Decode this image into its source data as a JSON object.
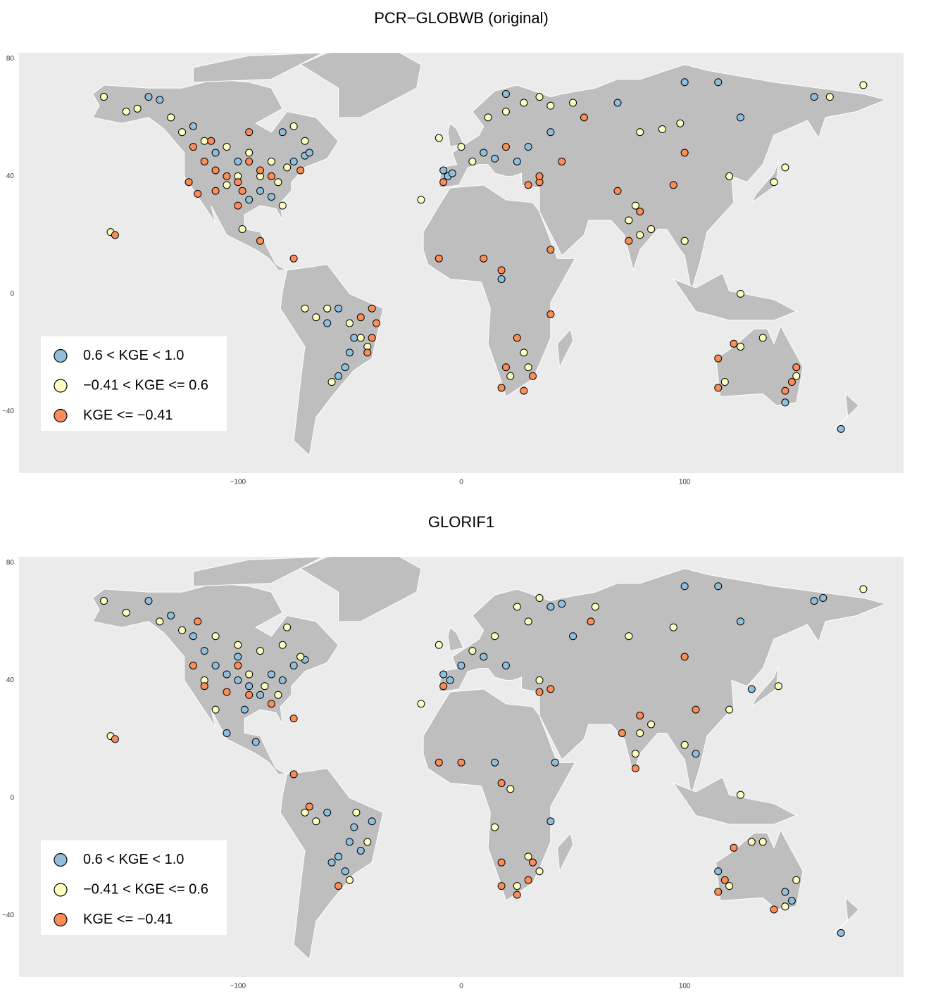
{
  "chart_data": [
    {
      "type": "scatter",
      "title": "PCR−GLOBWB (original)",
      "xlim": [
        -198,
        198
      ],
      "ylim": [
        -61,
        82
      ],
      "xticks": [
        {
          "value": -100,
          "label": "−100"
        },
        0,
        100
      ],
      "yticks": [
        {
          "value": -40,
          "label": "−40"
        },
        0,
        40,
        80
      ],
      "grid": false,
      "legend": "lower left",
      "series": [
        {
          "name": "0.6 < KGE < 1.0",
          "color": "#91bfdb",
          "x": [
            -140,
            -135,
            -120,
            -110,
            -100,
            -90,
            -85,
            -95,
            -75,
            -70,
            -80,
            -68,
            -8,
            -6,
            -4,
            10,
            15,
            25,
            30,
            20,
            40,
            70,
            100,
            115,
            125,
            158,
            -50,
            -52,
            -55,
            -48,
            -60,
            -55,
            170,
            18,
            145
          ],
          "values": [
            67,
            66,
            57,
            48,
            45,
            35,
            33,
            32,
            45,
            47,
            55,
            48,
            42,
            40,
            41,
            48,
            46,
            45,
            50,
            68,
            55,
            65,
            72,
            72,
            60,
            67,
            -20,
            -25,
            -28,
            -15,
            -10,
            -5,
            -46,
            5,
            -37
          ]
        },
        {
          "name": "−0.41 < KGE <= 0.6",
          "color": "#ffffbf",
          "x": [
            -160,
            -150,
            -145,
            -130,
            -125,
            -115,
            -105,
            -95,
            -85,
            -78,
            -70,
            -75,
            -100,
            -90,
            -105,
            -82,
            -80,
            -98,
            -157,
            -18,
            -10,
            0,
            5,
            12,
            20,
            28,
            35,
            40,
            50,
            80,
            90,
            98,
            120,
            140,
            145,
            80,
            75,
            85,
            78,
            100,
            125,
            165,
            180,
            -60,
            -65,
            -70,
            -45,
            -42,
            -50,
            -58,
            22,
            30,
            28,
            125,
            135,
            150,
            118
          ],
          "values": [
            67,
            62,
            63,
            60,
            55,
            52,
            50,
            48,
            45,
            43,
            52,
            57,
            40,
            40,
            37,
            38,
            30,
            22,
            21,
            32,
            53,
            50,
            45,
            60,
            62,
            65,
            67,
            64,
            65,
            55,
            56,
            58,
            40,
            38,
            43,
            20,
            25,
            22,
            30,
            18,
            0,
            67,
            71,
            -5,
            -8,
            -5,
            -15,
            -18,
            -10,
            -30,
            -28,
            -25,
            -20,
            -18,
            -15,
            -28,
            -30
          ]
        },
        {
          "name": "KGE <= −0.41",
          "color": "#fc8d59",
          "x": [
            -120,
            -115,
            -110,
            -105,
            -100,
            -98,
            -95,
            -90,
            -85,
            -110,
            -100,
            -122,
            -118,
            -112,
            -95,
            -72,
            -90,
            -155,
            -75,
            -40,
            -38,
            -40,
            -42,
            -45,
            -8,
            20,
            45,
            30,
            35,
            -10,
            10,
            18,
            40,
            40,
            20,
            18,
            28,
            25,
            32,
            35,
            55,
            70,
            80,
            75,
            100,
            95,
            115,
            115,
            122,
            148,
            150,
            145
          ],
          "values": [
            50,
            45,
            42,
            40,
            38,
            35,
            45,
            42,
            40,
            35,
            30,
            38,
            34,
            52,
            55,
            42,
            18,
            20,
            12,
            -5,
            -10,
            -15,
            -20,
            -8,
            38,
            50,
            45,
            37,
            38,
            12,
            12,
            8,
            15,
            -7,
            -25,
            -32,
            -33,
            -15,
            -28,
            40,
            60,
            35,
            28,
            18,
            48,
            37,
            -32,
            -22,
            -17,
            -30,
            -25,
            -33
          ]
        }
      ]
    },
    {
      "type": "scatter",
      "title": "GLORIF1",
      "xlim": [
        -198,
        198
      ],
      "ylim": [
        -61,
        82
      ],
      "xticks": [
        {
          "value": -100,
          "label": "−100"
        },
        0,
        100
      ],
      "yticks": [
        {
          "value": -40,
          "label": "−40"
        },
        0,
        40,
        80
      ],
      "grid": false,
      "legend": "lower left",
      "series": [
        {
          "name": "0.6 < KGE < 1.0",
          "color": "#91bfdb",
          "x": [
            -140,
            -130,
            -120,
            -115,
            -110,
            -105,
            -100,
            -95,
            -90,
            -85,
            -80,
            -75,
            -70,
            -100,
            -97,
            -105,
            -92,
            -8,
            -5,
            0,
            10,
            20,
            40,
            45,
            50,
            100,
            115,
            125,
            158,
            162,
            130,
            105,
            -55,
            -52,
            -50,
            -48,
            -58,
            -45,
            -40,
            -60,
            15,
            40,
            42,
            145,
            148,
            115,
            170
          ],
          "values": [
            67,
            62,
            55,
            50,
            45,
            42,
            40,
            38,
            35,
            42,
            40,
            45,
            47,
            48,
            30,
            22,
            19,
            42,
            40,
            45,
            48,
            45,
            65,
            66,
            55,
            72,
            72,
            60,
            67,
            68,
            37,
            15,
            -20,
            -25,
            -15,
            -10,
            -22,
            -18,
            -8,
            -5,
            12,
            -8,
            12,
            -32,
            -35,
            -25,
            -46
          ]
        },
        {
          "name": "−0.41 < KGE <= 0.6",
          "color": "#ffffbf",
          "x": [
            -160,
            -150,
            -135,
            -125,
            -110,
            -100,
            -90,
            -80,
            -72,
            -78,
            -115,
            -95,
            -88,
            -82,
            -157,
            -110,
            -18,
            -10,
            5,
            15,
            25,
            30,
            35,
            35,
            60,
            75,
            95,
            80,
            78,
            85,
            100,
            120,
            142,
            125,
            180,
            -65,
            -70,
            -50,
            -42,
            -47,
            25,
            30,
            35,
            15,
            22,
            130,
            135,
            150,
            145,
            120
          ],
          "values": [
            67,
            63,
            60,
            57,
            55,
            52,
            50,
            52,
            48,
            58,
            40,
            42,
            38,
            35,
            21,
            30,
            32,
            52,
            50,
            55,
            65,
            60,
            40,
            68,
            65,
            55,
            58,
            22,
            15,
            25,
            18,
            30,
            38,
            1,
            71,
            -8,
            -5,
            -28,
            -15,
            -5,
            -30,
            -20,
            -25,
            -10,
            3,
            -15,
            -15,
            -28,
            -37,
            -30
          ]
        },
        {
          "name": "KGE <= −0.41",
          "color": "#fc8d59",
          "x": [
            -120,
            -115,
            -105,
            -95,
            -118,
            -100,
            -85,
            -75,
            -155,
            -8,
            40,
            35,
            58,
            100,
            80,
            72,
            105,
            78,
            -10,
            0,
            18,
            18,
            18,
            25,
            30,
            32,
            -75,
            -68,
            -55,
            115,
            118,
            122,
            140
          ],
          "values": [
            45,
            38,
            36,
            35,
            60,
            45,
            32,
            27,
            20,
            38,
            37,
            36,
            60,
            48,
            28,
            22,
            30,
            10,
            12,
            12,
            5,
            -22,
            -30,
            -33,
            -28,
            -22,
            8,
            -3,
            -30,
            -32,
            -28,
            -17,
            -38
          ]
        }
      ]
    }
  ]
}
